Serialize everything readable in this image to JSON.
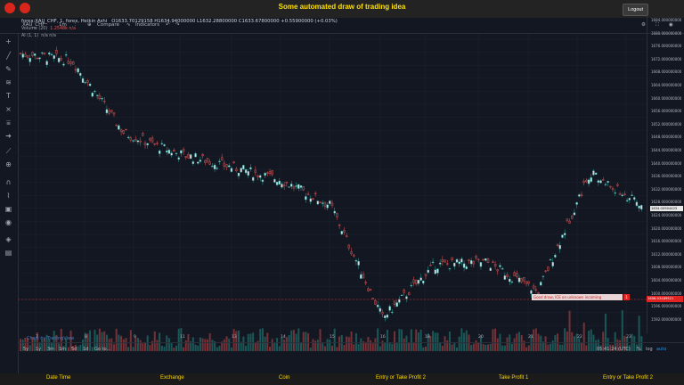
{
  "header": {
    "title": "Some automated draw of trading idea",
    "logout_label": "Logout"
  },
  "toolbar": {
    "symbol": "XAU_CHF",
    "interval": "1m",
    "compare_label": "Compare",
    "indicators_label": "Indicators"
  },
  "legend": {
    "main": "forex:XAU_CHF, 1, forex, Heikin Ashi",
    "ohlc": "O1633.70129158  H1634.94000000  L1632.28800000  C1633.67800000  +0.55900000 (+0.03%)",
    "volume": "Volume (20)",
    "volume_val": "1.2548k  n/a",
    "ai": "AI (1, 1)",
    "ai_val": "n/a  n/a"
  },
  "price_axis": [
    "1684.000000000",
    "1680.000000000",
    "1676.000000000",
    "1672.000000000",
    "1668.000000000",
    "1664.000000000",
    "1660.000000000",
    "1656.000000000",
    "1652.000000000",
    "1648.000000000",
    "1644.000000000",
    "1640.000000000",
    "1636.000000000",
    "1632.000000000",
    "1628.000000000",
    "1624.000000000",
    "1620.000000000",
    "1616.000000000",
    "1612.000000000",
    "1608.000000000",
    "1604.000000000",
    "1600.000000000",
    "1596.000000000",
    "1592.000000000"
  ],
  "current_price": "1634.00904425",
  "marker_price": "1606.03489521",
  "marker_text": "Good draw, ICE on unknown incoming",
  "marker_num": "1",
  "time_axis": [
    "7",
    "8",
    "9",
    "11",
    "13",
    "14",
    "15",
    "16",
    "18",
    "20",
    "21",
    "22",
    "23"
  ],
  "bottom": {
    "ranges": [
      "5y",
      "1y",
      "3m",
      "1m",
      "5d",
      "1d",
      "Go to..."
    ],
    "time": "05:41:24 (UTC)",
    "pct": "%",
    "log": "log",
    "auto": "auto"
  },
  "watermark": "Chart by TradingView",
  "footer": [
    "Date Time",
    "Exchange",
    "Coin",
    "Entry or Take Profit 2",
    "Take Profit 1",
    "Entry or Take Profit 2"
  ],
  "colors": {
    "accent": "#ffd800",
    "up": "#26a69a",
    "down": "#ef5350"
  },
  "chart_data": {
    "type": "line",
    "title": "",
    "x": [
      "7",
      "8",
      "9",
      "11",
      "13",
      "14",
      "15",
      "16",
      "18",
      "20",
      "21",
      "22",
      "23"
    ],
    "values": [
      1680,
      1678,
      1656,
      1650,
      1646,
      1642,
      1634,
      1600,
      1616,
      1617,
      1608,
      1644,
      1634
    ],
    "ylim": [
      1590,
      1686
    ]
  }
}
